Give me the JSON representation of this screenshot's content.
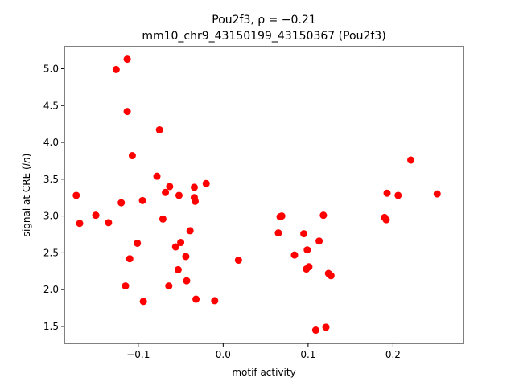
{
  "chart_data": {
    "type": "scatter",
    "title_line1": "Pou2f3, ρ = −0.21",
    "title_line2": "mm10_chr9_43150199_43150367 (Pou2f3)",
    "xlabel": "motif activity",
    "ylabel": "signal at CRE (ln)",
    "xlim": [
      -0.187,
      0.283
    ],
    "ylim": [
      1.27,
      5.3
    ],
    "xticks": [
      -0.1,
      0.0,
      0.1,
      0.2
    ],
    "xtick_labels": [
      "−0.1",
      "0.0",
      "0.1",
      "0.2"
    ],
    "yticks": [
      1.5,
      2.0,
      2.5,
      3.0,
      3.5,
      4.0,
      4.5,
      5.0
    ],
    "ytick_labels": [
      "1.5",
      "2.0",
      "2.5",
      "3.0",
      "3.5",
      "4.0",
      "4.5",
      "5.0"
    ],
    "grid": false,
    "marker_color": "#ff0000",
    "series": [
      {
        "x": [
          -0.173,
          -0.169,
          -0.15,
          -0.135,
          -0.126,
          -0.12,
          -0.115,
          -0.113,
          -0.113,
          -0.11,
          -0.107,
          -0.101,
          -0.095,
          -0.094,
          -0.078,
          -0.075,
          -0.071,
          -0.068,
          -0.064,
          -0.063,
          -0.056,
          -0.053,
          -0.052,
          -0.05,
          -0.044,
          -0.043,
          -0.039,
          -0.034,
          -0.034,
          -0.033,
          -0.032,
          -0.02,
          -0.01,
          0.018,
          0.065,
          0.067,
          0.069,
          0.084,
          0.095,
          0.098,
          0.099,
          0.101,
          0.109,
          0.113,
          0.118,
          0.121,
          0.124,
          0.127,
          0.19,
          0.192,
          0.193,
          0.206,
          0.221,
          0.252
        ],
        "y": [
          3.28,
          2.9,
          3.01,
          2.91,
          4.99,
          3.18,
          2.05,
          4.42,
          5.13,
          2.42,
          3.82,
          2.63,
          3.21,
          1.84,
          3.54,
          4.17,
          2.96,
          3.32,
          2.05,
          3.4,
          2.58,
          2.27,
          3.28,
          2.64,
          2.45,
          2.12,
          2.8,
          3.39,
          3.25,
          3.2,
          1.87,
          3.44,
          1.85,
          2.4,
          2.77,
          2.99,
          3.0,
          2.47,
          2.76,
          2.28,
          2.54,
          2.31,
          1.45,
          2.66,
          3.01,
          1.49,
          2.22,
          2.19,
          2.98,
          2.95,
          3.31,
          3.28,
          3.76,
          3.3
        ]
      }
    ]
  }
}
